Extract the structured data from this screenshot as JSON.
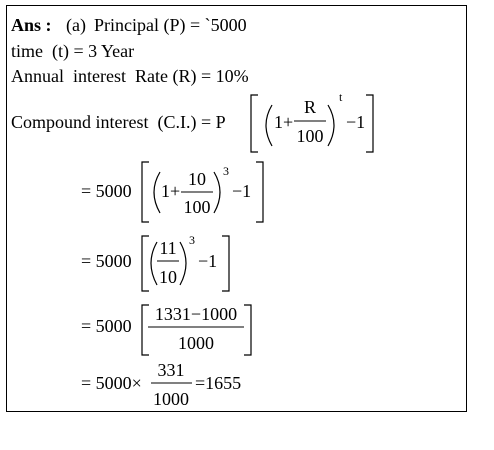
{
  "header": {
    "label": "Ans :",
    "part": "(a)",
    "principal": "Principal (P) = `5000"
  },
  "given": [
    "time  (t) = 3 Year",
    "Annual  interest  Rate (R) = 10%"
  ],
  "formula": {
    "lhs": "Compound interest  (C.I.) = P",
    "term": "1+",
    "numerator": "R",
    "denominator": "100",
    "exponent": "t",
    "tail": "−1"
  },
  "steps": [
    {
      "lhs": "= 5000",
      "term": "1+",
      "numerator": "10",
      "denominator": "100",
      "exponent": "3",
      "tail": "−1"
    },
    {
      "lhs": "= 5000",
      "numerator": "11",
      "denominator": "10",
      "exponent": "3",
      "tail": "−1"
    },
    {
      "lhs": "= 5000",
      "numerator": "1331−1000",
      "denominator": "1000"
    },
    {
      "lhs": "= 5000×",
      "numerator": "331",
      "denominator": "1000",
      "result": "=1655"
    }
  ]
}
